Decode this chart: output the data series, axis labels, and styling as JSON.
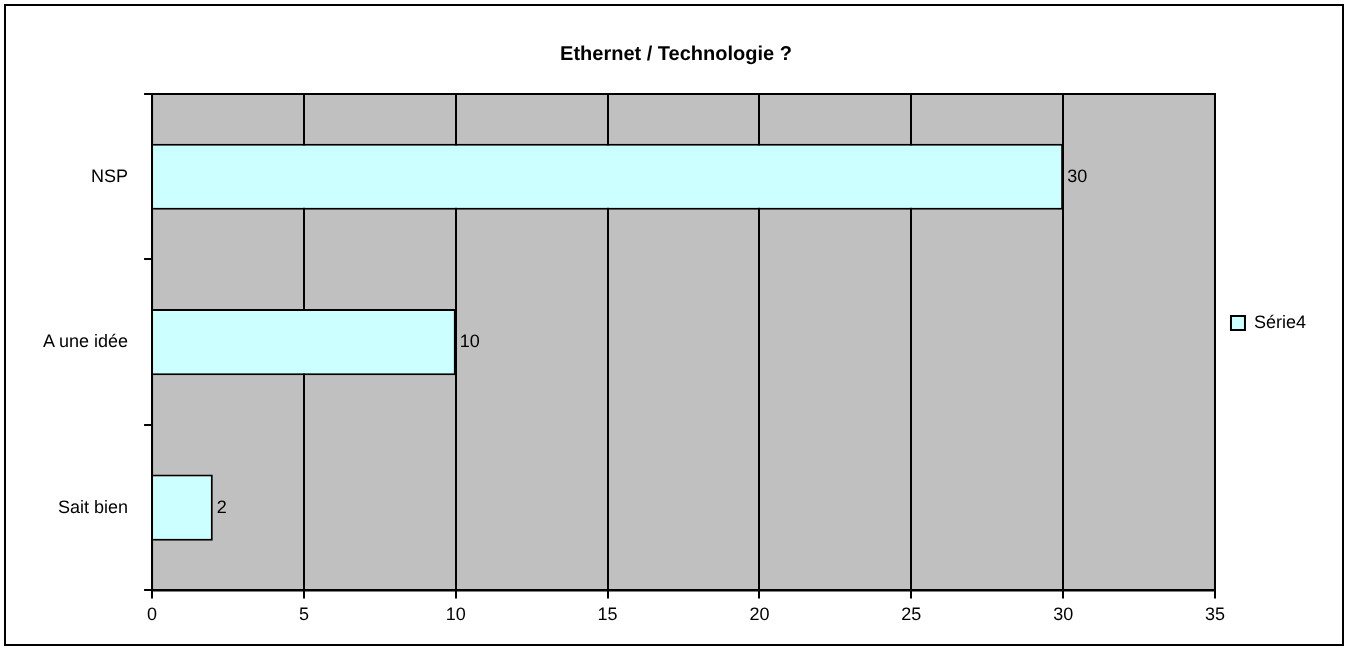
{
  "chart_data": {
    "type": "bar",
    "orientation": "horizontal",
    "title": "Ethernet / Technologie ?",
    "categories": [
      "NSP",
      "A une idée",
      "Sait bien"
    ],
    "series": [
      {
        "name": "Série4",
        "color": "#ccffff",
        "values": [
          30,
          10,
          2
        ]
      }
    ],
    "xlim": [
      0,
      35
    ],
    "xticks": [
      0,
      5,
      10,
      15,
      20,
      25,
      30,
      35
    ],
    "grid": "x",
    "legend": "right",
    "data_labels": true
  }
}
